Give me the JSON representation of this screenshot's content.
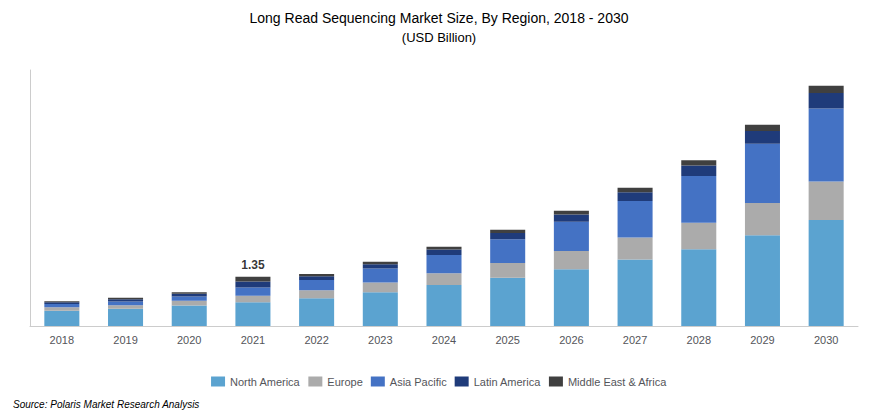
{
  "chart_data": {
    "type": "bar",
    "stacked": true,
    "title": "Long Read Sequencing Market Size, By Region, 2018 - 2030",
    "subtitle": "(USD Billion)",
    "source": "Source: Polaris Market Research Analysis",
    "categories": [
      "2018",
      "2019",
      "2020",
      "2021",
      "2022",
      "2023",
      "2024",
      "2025",
      "2026",
      "2027",
      "2028",
      "2029",
      "2030"
    ],
    "series": [
      {
        "name": "North America",
        "color": "#5BA3D0",
        "values": [
          0.42,
          0.47,
          0.56,
          0.65,
          0.76,
          0.92,
          1.12,
          1.32,
          1.55,
          1.82,
          2.1,
          2.48,
          2.9
        ]
      },
      {
        "name": "Europe",
        "color": "#ABABAB",
        "values": [
          0.09,
          0.1,
          0.13,
          0.18,
          0.22,
          0.27,
          0.32,
          0.4,
          0.5,
          0.6,
          0.72,
          0.88,
          1.05
        ]
      },
      {
        "name": "Asia Pacific",
        "color": "#4472C4",
        "values": [
          0.09,
          0.1,
          0.12,
          0.22,
          0.28,
          0.38,
          0.5,
          0.65,
          0.8,
          1.0,
          1.28,
          1.62,
          2.0
        ]
      },
      {
        "name": "Latin America",
        "color": "#1F3B7A",
        "values": [
          0.05,
          0.06,
          0.07,
          0.17,
          0.1,
          0.12,
          0.15,
          0.17,
          0.2,
          0.24,
          0.29,
          0.35,
          0.42
        ]
      },
      {
        "name": "Middle East & Africa",
        "color": "#404040",
        "values": [
          0.03,
          0.04,
          0.04,
          0.13,
          0.06,
          0.07,
          0.08,
          0.09,
          0.1,
          0.12,
          0.14,
          0.17,
          0.2
        ]
      }
    ],
    "annotations": [
      {
        "text": "1.35",
        "x": "2021",
        "y": 1.35
      }
    ],
    "ylim": [
      0,
      7.0
    ],
    "grid": false,
    "legend": "bottom",
    "tick_labels": "x",
    "data_labels": false
  }
}
